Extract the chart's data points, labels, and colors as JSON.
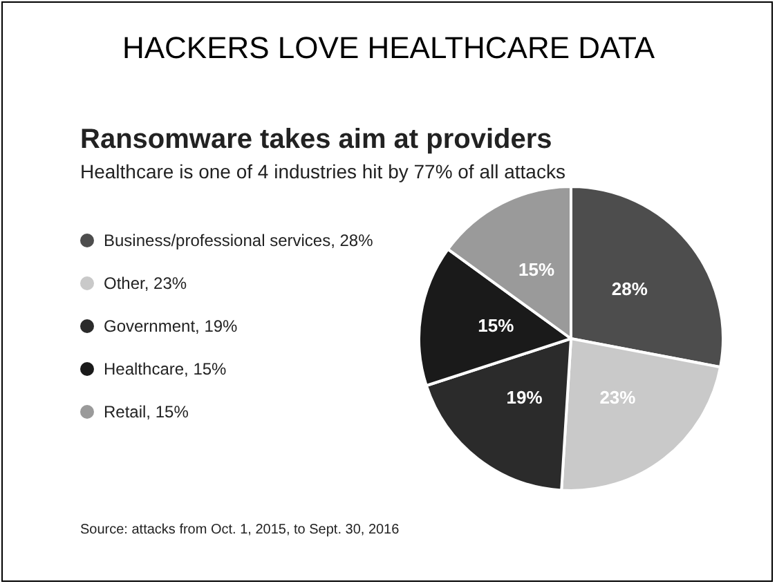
{
  "chart_data": {
    "type": "pie",
    "title": "HACKERS LOVE HEALTHCARE DATA",
    "subtitle": "Ransomware takes aim at providers",
    "annotations": [
      "Healthcare is one of 4 industries hit by 77% of all attacks",
      "Source: attacks from Oct. 1, 2015, to Sept. 30, 2016"
    ],
    "categories": [
      "Business/professional services, 28%",
      "Other, 23%",
      "Government, 19%",
      "Healthcare, 15%",
      "Retail, 15%"
    ],
    "values": [
      28,
      23,
      19,
      15,
      15
    ],
    "colors": [
      "#4d4d4d",
      "#c9c9c9",
      "#2b2b2b",
      "#1a1a1a",
      "#9a9a9a"
    ],
    "value_labels": [
      "28%",
      "23%",
      "19%",
      "15%",
      "15%"
    ],
    "legend": "left"
  }
}
